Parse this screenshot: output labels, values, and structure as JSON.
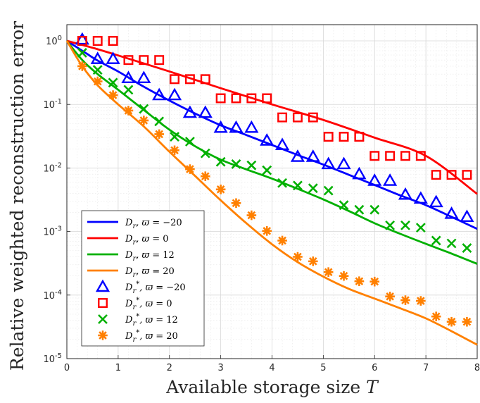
{
  "chart_data": {
    "type": "line",
    "title": "",
    "xlabel": "Available storage size T",
    "ylabel": "Relative weighted reconstruction error",
    "xlim": [
      0,
      8
    ],
    "ylim": [
      1e-05,
      1.8
    ],
    "yscale": "log",
    "grid": true,
    "minor_grid": true,
    "legend_position": "bottom-left",
    "x_ticks": [
      0,
      1,
      2,
      3,
      4,
      5,
      6,
      7,
      8
    ],
    "x_tick_labels": [
      "0",
      "1",
      "2",
      "3",
      "4",
      "5",
      "6",
      "7",
      "8"
    ],
    "y_ticks": [
      1e-05,
      0.0001,
      0.001,
      0.01,
      0.1,
      1
    ],
    "y_tick_labels": [
      {
        "base": "10",
        "exp": "-5"
      },
      {
        "base": "10",
        "exp": "-4"
      },
      {
        "base": "10",
        "exp": "-3"
      },
      {
        "base": "10",
        "exp": "-2"
      },
      {
        "base": "10",
        "exp": "-1"
      },
      {
        "base": "10",
        "exp": "0"
      }
    ],
    "series": [
      {
        "name": "D_r, ϖ = −20",
        "kind": "line",
        "color": "#0000ff",
        "x": [
          0,
          0.3,
          0.6,
          1.0,
          1.5,
          2.0,
          2.5,
          3.0,
          3.5,
          4.0,
          4.5,
          5.0,
          5.5,
          6.0,
          6.5,
          7.0,
          7.5,
          8.0
        ],
        "y": [
          1.0,
          0.7,
          0.49,
          0.33,
          0.19,
          0.115,
          0.072,
          0.047,
          0.033,
          0.023,
          0.016,
          0.0113,
          0.0078,
          0.0054,
          0.0037,
          0.0026,
          0.0017,
          0.0011
        ]
      },
      {
        "name": "D_r, ϖ = 0",
        "kind": "line",
        "color": "#ff0000",
        "x": [
          0,
          0.5,
          1.0,
          2.0,
          3.0,
          4.0,
          5.0,
          6.0,
          7.0,
          8.0
        ],
        "y": [
          1.0,
          0.78,
          0.59,
          0.33,
          0.18,
          0.1,
          0.057,
          0.03,
          0.0155,
          0.0039
        ]
      },
      {
        "name": "D_r, ϖ = 12",
        "kind": "line",
        "color": "#00b000",
        "x": [
          0,
          0.3,
          0.6,
          1.0,
          1.5,
          2.0,
          2.5,
          3.0,
          3.5,
          4.0,
          4.5,
          5.0,
          5.5,
          6.0,
          6.5,
          7.0,
          7.5,
          8.0
        ],
        "y": [
          1.0,
          0.5,
          0.3,
          0.17,
          0.082,
          0.04,
          0.022,
          0.0135,
          0.0095,
          0.0068,
          0.0047,
          0.0032,
          0.0021,
          0.00135,
          0.00092,
          0.00064,
          0.00045,
          0.00031
        ]
      },
      {
        "name": "D_r, ϖ = 20",
        "kind": "line",
        "color": "#ff8000",
        "x": [
          0,
          0.3,
          0.6,
          1.0,
          1.5,
          2.0,
          2.5,
          3.0,
          3.5,
          4.0,
          4.5,
          5.0,
          5.5,
          6.0,
          6.5,
          7.0,
          7.5,
          8.0
        ],
        "y": [
          1.0,
          0.4,
          0.2,
          0.1,
          0.045,
          0.018,
          0.0075,
          0.0031,
          0.00135,
          0.00063,
          0.00033,
          0.000195,
          0.000125,
          8.8e-05,
          6.2e-05,
          4.3e-05,
          2.7e-05,
          1.65e-05
        ]
      },
      {
        "name": "D_r*, ϖ = −20",
        "kind": "marker",
        "marker": "triangle",
        "color": "#0000ff",
        "x": [
          0.3,
          0.6,
          0.9,
          1.2,
          1.5,
          1.8,
          2.1,
          2.4,
          2.7,
          3.0,
          3.3,
          3.6,
          3.9,
          4.2,
          4.5,
          4.8,
          5.1,
          5.4,
          5.7,
          6.0,
          6.3,
          6.6,
          6.9,
          7.2,
          7.5,
          7.8
        ],
        "y": [
          1.05,
          0.52,
          0.52,
          0.26,
          0.26,
          0.14,
          0.14,
          0.074,
          0.074,
          0.043,
          0.043,
          0.043,
          0.027,
          0.023,
          0.015,
          0.015,
          0.0115,
          0.0115,
          0.008,
          0.0063,
          0.0063,
          0.0038,
          0.0033,
          0.0029,
          0.0019,
          0.0017
        ]
      },
      {
        "name": "D_r*, ϖ = 0",
        "kind": "marker",
        "marker": "square",
        "color": "#ff0000",
        "x": [
          0.3,
          0.6,
          0.9,
          1.2,
          1.5,
          1.8,
          2.1,
          2.4,
          2.7,
          3.0,
          3.3,
          3.6,
          3.9,
          4.2,
          4.5,
          4.8,
          5.1,
          5.4,
          5.7,
          6.0,
          6.3,
          6.6,
          6.9,
          7.2,
          7.5,
          7.8
        ],
        "y": [
          1.0,
          1.0,
          1.0,
          0.5,
          0.5,
          0.5,
          0.25,
          0.25,
          0.25,
          0.125,
          0.125,
          0.125,
          0.125,
          0.0625,
          0.0625,
          0.0625,
          0.031,
          0.031,
          0.031,
          0.0155,
          0.0155,
          0.0155,
          0.0155,
          0.0078,
          0.0078,
          0.0078
        ]
      },
      {
        "name": "D_r*, ϖ = 12",
        "kind": "marker",
        "marker": "x",
        "color": "#00b000",
        "x": [
          0.3,
          0.6,
          0.9,
          1.2,
          1.5,
          1.8,
          2.1,
          2.4,
          2.7,
          3.0,
          3.3,
          3.6,
          3.9,
          4.2,
          4.5,
          4.8,
          5.1,
          5.4,
          5.7,
          6.0,
          6.3,
          6.6,
          6.9,
          7.2,
          7.5,
          7.8
        ],
        "y": [
          0.65,
          0.35,
          0.22,
          0.17,
          0.085,
          0.054,
          0.031,
          0.026,
          0.017,
          0.0125,
          0.0115,
          0.011,
          0.0092,
          0.0058,
          0.0053,
          0.0048,
          0.0044,
          0.0026,
          0.0022,
          0.0022,
          0.00125,
          0.00125,
          0.00115,
          0.00072,
          0.00065,
          0.00055
        ]
      },
      {
        "name": "D_r*, ϖ = 20",
        "kind": "marker",
        "marker": "asterisk",
        "color": "#ff8000",
        "x": [
          0.3,
          0.6,
          0.9,
          1.2,
          1.5,
          1.8,
          2.1,
          2.4,
          2.7,
          3.0,
          3.3,
          3.6,
          3.9,
          4.2,
          4.5,
          4.8,
          5.1,
          5.4,
          5.7,
          6.0,
          6.3,
          6.6,
          6.9,
          7.2,
          7.5,
          7.8
        ],
        "y": [
          0.4,
          0.23,
          0.14,
          0.08,
          0.056,
          0.034,
          0.019,
          0.0096,
          0.0074,
          0.0046,
          0.0028,
          0.0018,
          0.00102,
          0.00072,
          0.0004,
          0.00034,
          0.00023,
          0.0002,
          0.000165,
          0.000163,
          9.5e-05,
          8.3e-05,
          8.1e-05,
          4.6e-05,
          3.8e-05,
          3.8e-05
        ]
      }
    ]
  },
  "legend": [
    {
      "symbol": "D",
      "sub": "r",
      "star": false,
      "var": "ϖ",
      "value": "−20"
    },
    {
      "symbol": "D",
      "sub": "r",
      "star": false,
      "var": "ϖ",
      "value": "0"
    },
    {
      "symbol": "D",
      "sub": "r",
      "star": false,
      "var": "ϖ",
      "value": "12"
    },
    {
      "symbol": "D",
      "sub": "r",
      "star": false,
      "var": "ϖ",
      "value": "20"
    },
    {
      "symbol": "D",
      "sub": "r",
      "star": true,
      "var": "ϖ",
      "value": "−20"
    },
    {
      "symbol": "D",
      "sub": "r",
      "star": true,
      "var": "ϖ",
      "value": "0"
    },
    {
      "symbol": "D",
      "sub": "r",
      "star": true,
      "var": "ϖ",
      "value": "12"
    },
    {
      "symbol": "D",
      "sub": "r",
      "star": true,
      "var": "ϖ",
      "value": "20"
    }
  ]
}
